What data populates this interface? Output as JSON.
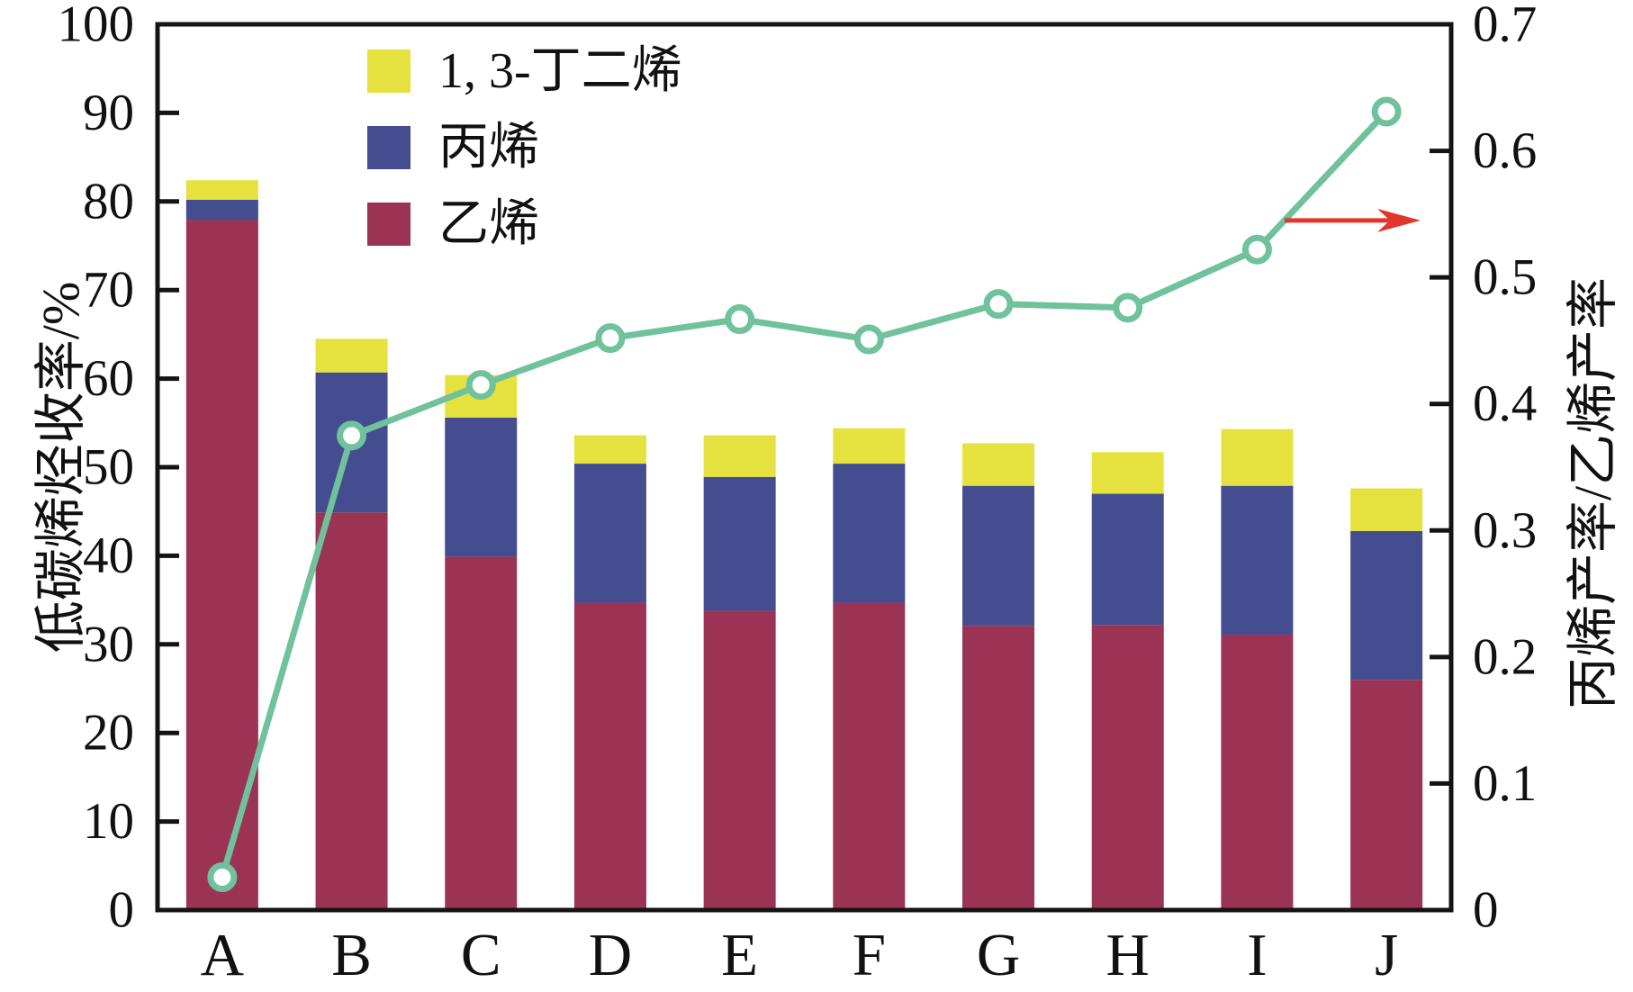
{
  "figure": {
    "background": "#ffffff",
    "frame_color": "#141414"
  },
  "chart_data": {
    "type": "bar",
    "subtype": "stacked-bar-with-line-overlay",
    "categories": [
      "A",
      "B",
      "C",
      "D",
      "E",
      "F",
      "G",
      "H",
      "I",
      "J"
    ],
    "bar_series": [
      {
        "name": "乙烯",
        "color": "#9b3355",
        "values": [
          77.9,
          44.9,
          39.9,
          34.7,
          33.8,
          34.7,
          32.1,
          32.2,
          31.1,
          26.0
        ]
      },
      {
        "name": "丙烯",
        "color": "#444d90",
        "values": [
          2.3,
          15.8,
          15.7,
          15.7,
          15.1,
          15.7,
          15.8,
          14.8,
          16.8,
          16.8
        ]
      },
      {
        "name": "1, 3-丁二烯",
        "color": "#e5e23f",
        "values": [
          2.2,
          3.8,
          4.8,
          3.2,
          4.7,
          4.0,
          4.8,
          4.7,
          6.4,
          4.8
        ]
      }
    ],
    "bar_totals": [
      82.4,
      64.5,
      60.4,
      53.6,
      53.6,
      54.4,
      52.7,
      51.7,
      54.3,
      47.6
    ],
    "line_series": {
      "name": "丙烯产率/乙烯产率",
      "axis": "right",
      "color": "#6fc29b",
      "marker": "open-circle",
      "marker_fill": "#ffffff",
      "values": [
        0.026,
        0.375,
        0.415,
        0.452,
        0.467,
        0.451,
        0.479,
        0.476,
        0.522,
        0.631
      ]
    },
    "left_axis": {
      "label": "低碳烯烃收率/%",
      "min": 0,
      "max": 100,
      "tick_step": 10,
      "tick_labels": [
        "0",
        "10",
        "20",
        "30",
        "40",
        "50",
        "60",
        "70",
        "80",
        "90",
        "100"
      ]
    },
    "right_axis": {
      "label": "丙烯产率/乙烯产率",
      "min": 0,
      "max": 0.7,
      "tick_step": 0.1,
      "tick_labels": [
        "0",
        "0.1",
        "0.2",
        "0.3",
        "0.4",
        "0.5",
        "0.6",
        "0.7"
      ]
    },
    "legend": {
      "position": "upper-left-inside",
      "items": [
        {
          "label": "1, 3-丁二烯",
          "color": "#e5e23f"
        },
        {
          "label": "丙烯",
          "color": "#444d90"
        },
        {
          "label": "乙烯",
          "color": "#9b3355"
        }
      ]
    },
    "annotation": {
      "type": "arrow",
      "color": "#e2352b",
      "direction": "right",
      "at_right_axis_value": 0.545,
      "meaning": "curve refers to right axis"
    },
    "grid": false
  }
}
